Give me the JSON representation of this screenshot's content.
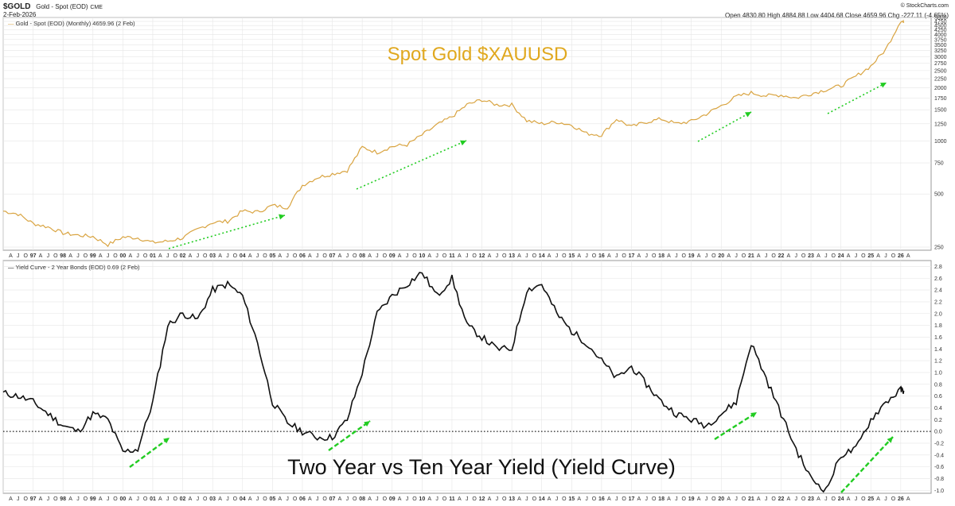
{
  "header": {
    "symbol": "$GOLD",
    "description": "Gold - Spot (EOD)",
    "exchange": "CME",
    "date": "2-Feb-2026",
    "watermark": "© StockCharts.com",
    "ohlc": "Open 4830.80  High 4884.88  Low 4404.68  Close 4659.96  Chg -227.11 (-4.65%)"
  },
  "colors": {
    "gold_line": "#d9a441",
    "gold_title": "#e0a81f",
    "yield_line": "#111111",
    "arrow": "#22cc22",
    "grid": "#e6e6e6"
  },
  "chart_data": [
    {
      "type": "line",
      "title": "Spot Gold $XAUUSD",
      "legend": "Gold - Spot (EOD) (Monthly) 4659.96 (2 Feb)",
      "yscale": "log",
      "ylim": [
        240,
        5000
      ],
      "yticks": [
        250,
        500,
        750,
        1000,
        1250,
        1500,
        1750,
        2000,
        2250,
        2500,
        2750,
        3000,
        3250,
        3500,
        3750,
        4000,
        4250,
        4500,
        4750,
        5000
      ],
      "x": [
        1996.0,
        1996.5,
        1997.0,
        1997.5,
        1998.0,
        1998.5,
        1999.0,
        1999.5,
        2000.0,
        2000.5,
        2001.0,
        2001.5,
        2002.0,
        2002.5,
        2003.0,
        2003.5,
        2004.0,
        2004.5,
        2005.0,
        2005.5,
        2006.0,
        2006.5,
        2007.0,
        2007.5,
        2008.0,
        2008.5,
        2009.0,
        2009.5,
        2010.0,
        2010.5,
        2011.0,
        2011.5,
        2012.0,
        2012.5,
        2013.0,
        2013.5,
        2014.0,
        2014.5,
        2015.0,
        2015.5,
        2016.0,
        2016.5,
        2017.0,
        2017.5,
        2018.0,
        2018.5,
        2019.0,
        2019.5,
        2020.0,
        2020.5,
        2021.0,
        2021.5,
        2022.0,
        2022.5,
        2023.0,
        2023.5,
        2024.0,
        2024.5,
        2025.0,
        2025.5,
        2026.0,
        2026.1
      ],
      "values": [
        400,
        385,
        340,
        325,
        300,
        292,
        287,
        258,
        285,
        282,
        265,
        270,
        282,
        315,
        345,
        350,
        400,
        395,
        430,
        420,
        560,
        620,
        650,
        680,
        920,
        860,
        930,
        950,
        1080,
        1230,
        1370,
        1600,
        1710,
        1600,
        1600,
        1300,
        1250,
        1280,
        1230,
        1100,
        1080,
        1330,
        1200,
        1280,
        1330,
        1250,
        1290,
        1420,
        1580,
        1780,
        1870,
        1800,
        1820,
        1750,
        1850,
        1950,
        2050,
        2320,
        2650,
        3300,
        4800,
        4660
      ]
    },
    {
      "type": "line",
      "title": "Two Year vs Ten Year Yield (Yield Curve)",
      "legend": "Yield Curve - 2 Year Bonds (EOD) 0.69 (2 Feb)",
      "ylim": [
        -1.05,
        2.9
      ],
      "yticks": [
        -1.0,
        -0.8,
        -0.6,
        -0.4,
        -0.2,
        0.0,
        0.2,
        0.4,
        0.6,
        0.8,
        1.0,
        1.2,
        1.4,
        1.6,
        1.8,
        2.0,
        2.2,
        2.4,
        2.6,
        2.8
      ],
      "ytick_labels": [
        "-1.0",
        "-0.8",
        "-0.6",
        "-0.4",
        "-0.2",
        "0.0",
        "0.2",
        "0.4",
        "0.6",
        "0.8",
        "1.0",
        "1.2",
        "1.4",
        "1.6",
        "1.8",
        "2.0",
        "2.2",
        "2.4",
        "2.6",
        "2.8"
      ],
      "x": [
        1996.0,
        1996.5,
        1997.0,
        1997.5,
        1998.0,
        1998.5,
        1999.0,
        1999.5,
        2000.0,
        2000.5,
        2001.0,
        2001.5,
        2002.0,
        2002.5,
        2003.0,
        2003.5,
        2004.0,
        2004.5,
        2005.0,
        2005.5,
        2006.0,
        2006.5,
        2007.0,
        2007.5,
        2008.0,
        2008.5,
        2009.0,
        2009.5,
        2010.0,
        2010.5,
        2011.0,
        2011.5,
        2012.0,
        2012.5,
        2013.0,
        2013.5,
        2014.0,
        2014.5,
        2015.0,
        2015.5,
        2016.0,
        2016.5,
        2017.0,
        2017.5,
        2018.0,
        2018.5,
        2019.0,
        2019.5,
        2020.0,
        2020.5,
        2021.0,
        2021.5,
        2022.0,
        2022.5,
        2023.0,
        2023.5,
        2024.0,
        2024.5,
        2025.0,
        2025.5,
        2026.0,
        2026.1
      ],
      "values": [
        0.65,
        0.6,
        0.5,
        0.3,
        0.1,
        0.0,
        0.3,
        0.2,
        -0.35,
        -0.3,
        0.5,
        1.8,
        2.0,
        1.9,
        2.4,
        2.5,
        2.3,
        1.5,
        0.5,
        0.15,
        0.0,
        -0.1,
        -0.1,
        0.2,
        1.0,
        2.0,
        2.3,
        2.5,
        2.7,
        2.3,
        2.6,
        1.8,
        1.6,
        1.4,
        1.4,
        2.4,
        2.5,
        2.0,
        1.7,
        1.5,
        1.2,
        0.9,
        1.1,
        0.8,
        0.5,
        0.3,
        0.2,
        0.1,
        0.3,
        0.5,
        1.5,
        0.9,
        0.3,
        -0.3,
        -0.8,
        -1.0,
        -0.4,
        -0.3,
        0.2,
        0.5,
        0.7,
        0.69
      ]
    }
  ],
  "x_axis_years": [
    "97",
    "98",
    "99",
    "00",
    "01",
    "02",
    "03",
    "04",
    "05",
    "06",
    "07",
    "08",
    "09",
    "10",
    "11",
    "12",
    "13",
    "14",
    "15",
    "16",
    "17",
    "18",
    "19",
    "20",
    "21",
    "22",
    "23",
    "24",
    "25",
    "26"
  ]
}
